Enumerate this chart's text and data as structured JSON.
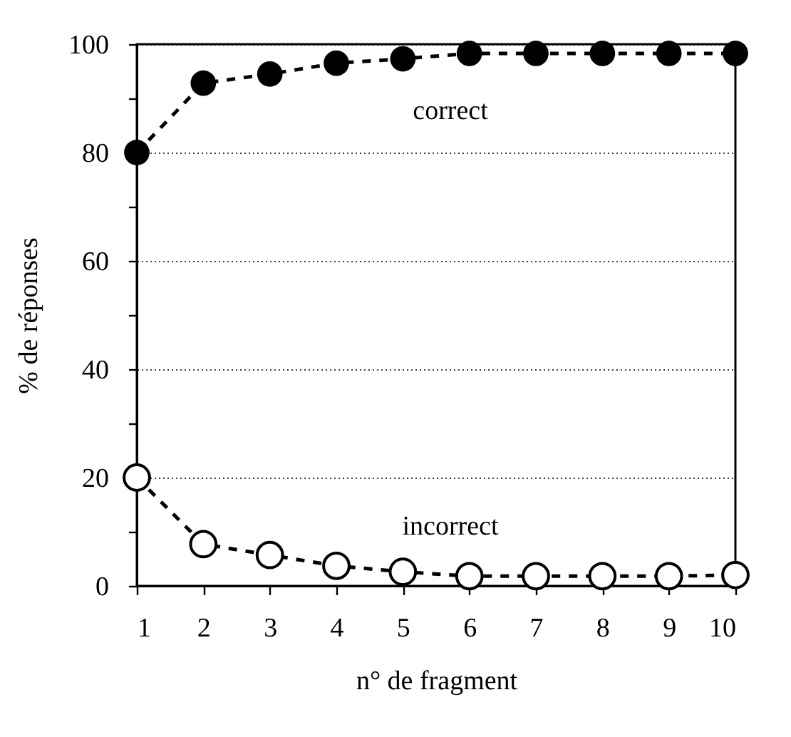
{
  "chart_data": {
    "type": "line",
    "xlabel": "n° de fragment",
    "ylabel": "% de réponses",
    "x": [
      1,
      2,
      3,
      4,
      5,
      6,
      7,
      8,
      9,
      10
    ],
    "series": [
      {
        "name": "correct",
        "color": "#000000",
        "values": [
          80,
          92.8,
          94.5,
          96.5,
          97.3,
          98.3,
          98.3,
          98.3,
          98.3,
          98.3
        ]
      },
      {
        "name": "incorrect",
        "color": "#000000",
        "values": [
          20,
          7.7,
          5.7,
          3.7,
          2.6,
          1.8,
          1.8,
          1.8,
          1.8,
          2
        ]
      }
    ],
    "xlim": [
      1,
      10
    ],
    "xticks": [
      1,
      2,
      3,
      4,
      5,
      6,
      7,
      8,
      9,
      10
    ],
    "ylim": [
      0,
      100
    ],
    "yticks": [
      0,
      {
        "value": 10,
        "label": null
      },
      20,
      {
        "value": 30,
        "label": null
      },
      40,
      {
        "value": 50,
        "label": null
      },
      60,
      {
        "value": 70,
        "label": null
      },
      80,
      {
        "value": 90,
        "label": null
      },
      100
    ],
    "grid": "y",
    "marker": "circle",
    "line_style": "dashed",
    "legend": false
  }
}
